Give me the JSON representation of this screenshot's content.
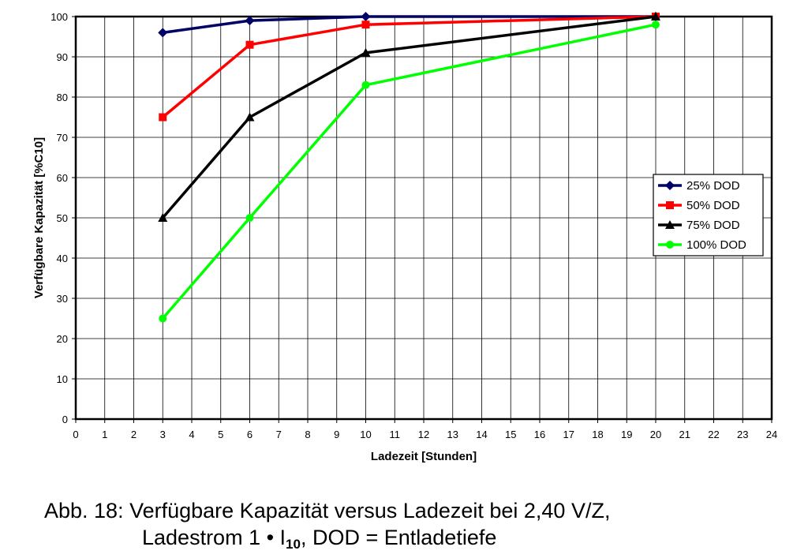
{
  "chart_data": {
    "type": "line",
    "xlabel": "Ladezeit [Stunden]",
    "ylabel": "Verfügbare Kapazität [%C10]",
    "xlim": [
      0,
      24
    ],
    "ylim": [
      0,
      100
    ],
    "x_ticks": [
      0,
      1,
      2,
      3,
      4,
      5,
      6,
      7,
      8,
      9,
      10,
      11,
      12,
      13,
      14,
      15,
      16,
      17,
      18,
      19,
      20,
      21,
      22,
      23,
      24
    ],
    "y_ticks": [
      0,
      10,
      20,
      30,
      40,
      50,
      60,
      70,
      80,
      90,
      100
    ],
    "grid": true,
    "legend_position": "right",
    "series": [
      {
        "name": "25% DOD",
        "color": "#000066",
        "marker": "diamond",
        "x": [
          3,
          6,
          10,
          20
        ],
        "y": [
          96,
          99,
          100,
          100
        ]
      },
      {
        "name": "50% DOD",
        "color": "#ff0000",
        "marker": "square",
        "x": [
          3,
          6,
          10,
          20
        ],
        "y": [
          75,
          93,
          98,
          100
        ]
      },
      {
        "name": "75% DOD",
        "color": "#000000",
        "marker": "triangle",
        "x": [
          3,
          6,
          10,
          20
        ],
        "y": [
          50,
          75,
          91,
          100
        ]
      },
      {
        "name": "100% DOD",
        "color": "#00ff00",
        "marker": "circle",
        "x": [
          3,
          6,
          10,
          20
        ],
        "y": [
          25,
          50,
          83,
          98
        ]
      }
    ]
  },
  "caption": {
    "line1": "Abb. 18: Verfügbare Kapazität versus Ladezeit bei 2,40 V/Z,",
    "line2_prefix": "Ladestrom 1 • I",
    "line2_sub": "10",
    "line2_suffix": ", DOD = Entladetiefe"
  }
}
